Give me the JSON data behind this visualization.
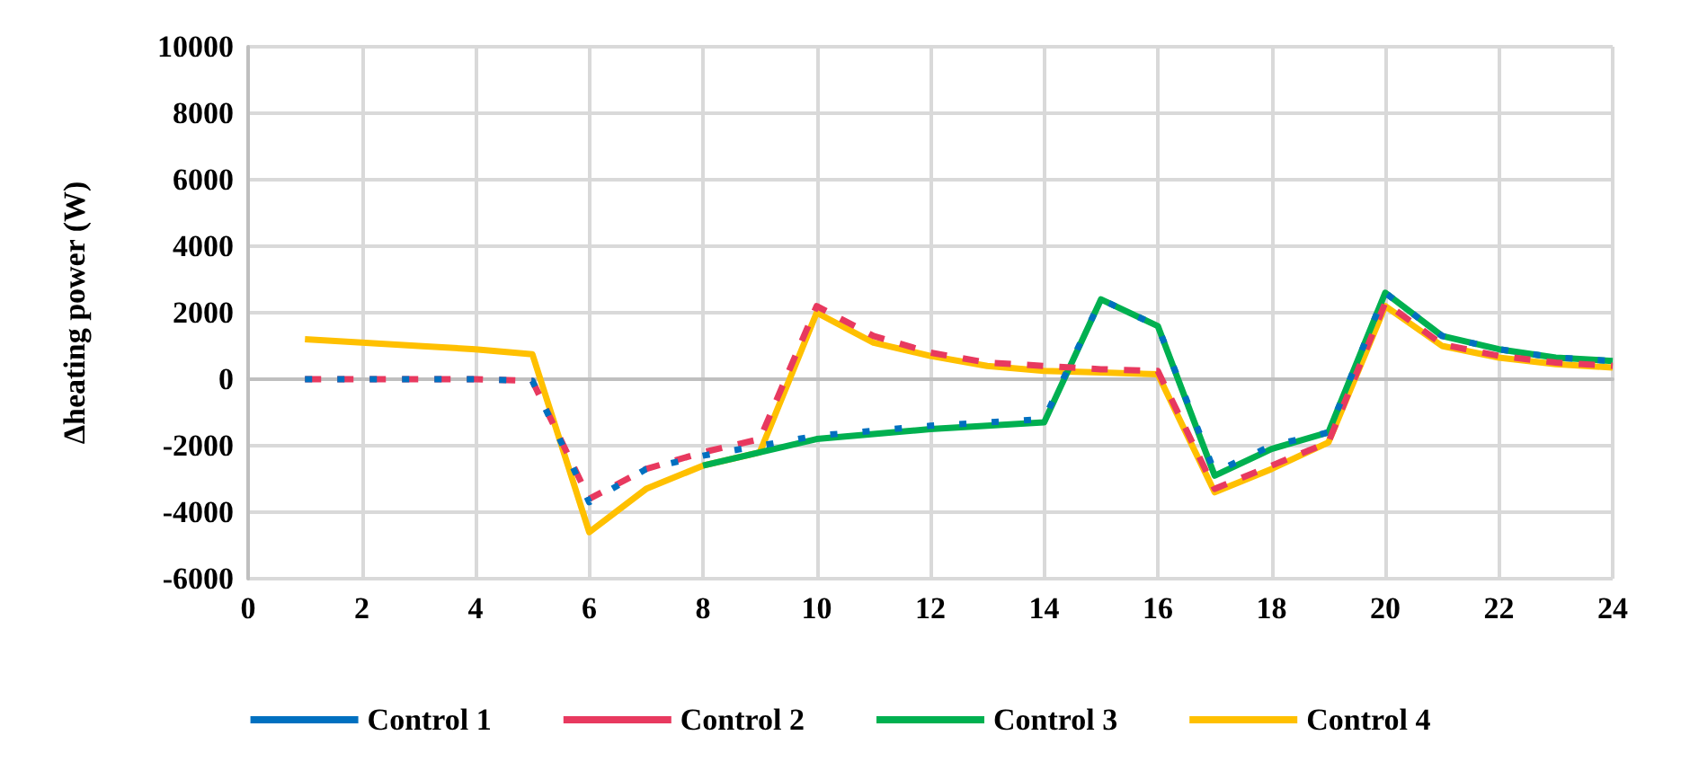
{
  "chart_data": {
    "type": "line",
    "ylabel": "Δheating power (W)",
    "x": [
      1,
      2,
      3,
      4,
      5,
      6,
      7,
      8,
      9,
      10,
      11,
      12,
      13,
      14,
      15,
      16,
      17,
      18,
      19,
      20,
      21,
      22,
      23,
      24
    ],
    "xlim": [
      0,
      24
    ],
    "xticks": [
      0,
      2,
      4,
      6,
      8,
      10,
      12,
      14,
      16,
      18,
      20,
      22,
      24
    ],
    "ylim": [
      -6000,
      10000
    ],
    "yticks": [
      -6000,
      -4000,
      -2000,
      0,
      2000,
      4000,
      6000,
      8000,
      10000
    ],
    "grid": true,
    "legend": "bottom",
    "marker": "none",
    "series": [
      {
        "name": "Control 1",
        "color": "#0070c0",
        "line_style": "dashed",
        "values": [
          0,
          0,
          0,
          0,
          -50,
          -3700,
          -2700,
          -2300,
          -2000,
          -1700,
          -1550,
          -1400,
          -1300,
          -1200,
          2400,
          1600,
          -2800,
          -2000,
          -1600,
          2600,
          1300,
          900,
          650,
          550
        ]
      },
      {
        "name": "Control 2",
        "color": "#e8395f",
        "line_style": "dashed",
        "values": [
          0,
          0,
          0,
          0,
          -50,
          -3600,
          -2700,
          -2200,
          -1800,
          2200,
          1300,
          800,
          500,
          400,
          300,
          250,
          -3300,
          -2600,
          -1900,
          2300,
          1050,
          700,
          500,
          400
        ]
      },
      {
        "name": "Control 3",
        "color": "#00b050",
        "line_style": "solid",
        "values": [
          null,
          null,
          null,
          null,
          null,
          null,
          null,
          -2600,
          -2200,
          -1800,
          -1650,
          -1500,
          -1400,
          -1300,
          2400,
          1600,
          -2900,
          -2100,
          -1600,
          2600,
          1300,
          900,
          650,
          550
        ]
      },
      {
        "name": "Control 4",
        "color": "#ffc000",
        "line_style": "solid",
        "values": [
          1200,
          1100,
          1000,
          900,
          750,
          -4600,
          -3300,
          -2600,
          -2200,
          2000,
          1100,
          700,
          400,
          250,
          200,
          150,
          -3400,
          -2700,
          -1900,
          2200,
          1000,
          650,
          450,
          350
        ]
      }
    ]
  }
}
